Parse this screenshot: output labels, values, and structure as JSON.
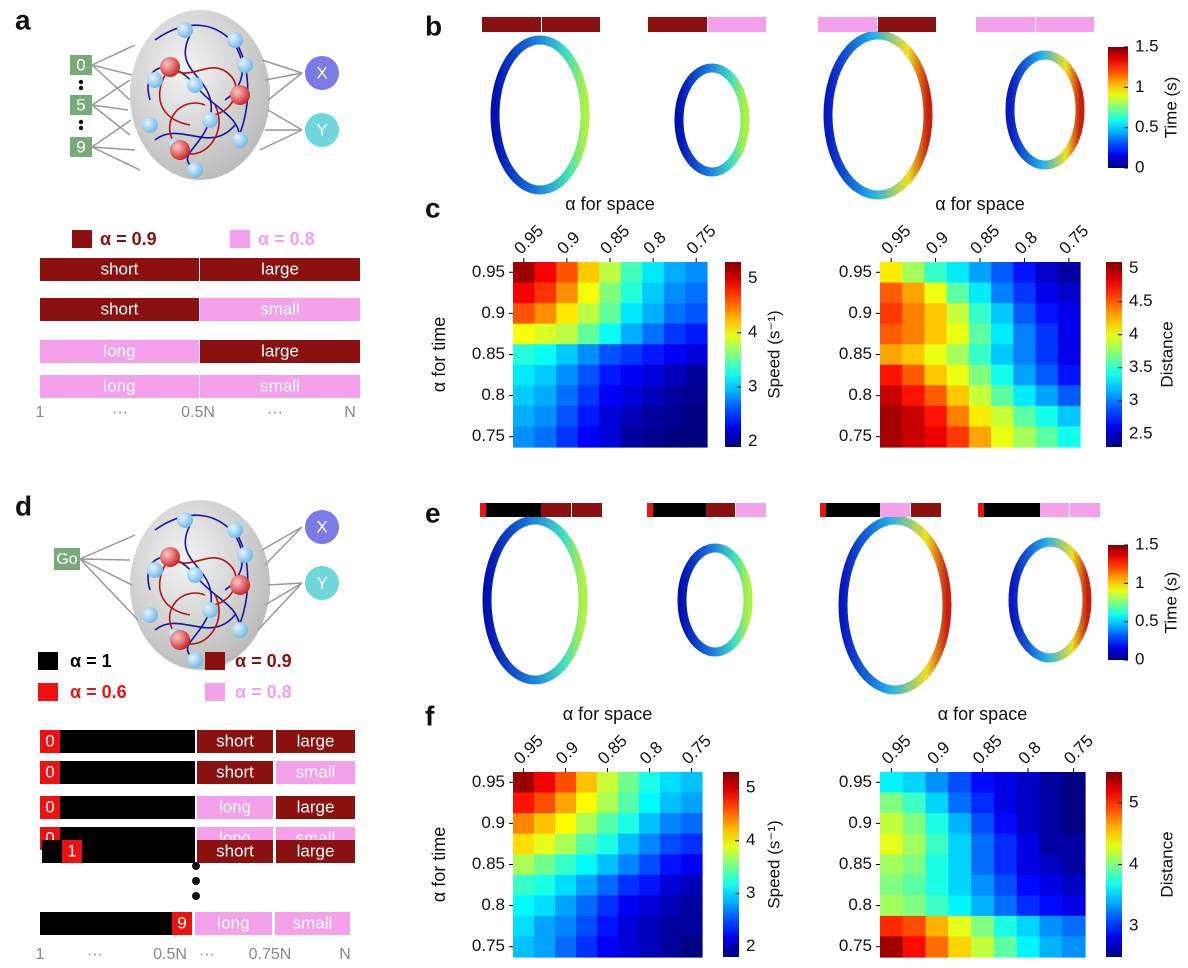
{
  "panel_letters": [
    "a",
    "b",
    "c",
    "d",
    "e",
    "f"
  ],
  "panel_a": {
    "inputs": [
      "0",
      "5",
      "9"
    ],
    "outputs": [
      "X",
      "Y"
    ],
    "legend": [
      {
        "label": "α = 0.9",
        "color": "#8b1010"
      },
      {
        "label": "α = 0.8",
        "color": "#f5a0ea"
      }
    ],
    "rows": [
      [
        "short",
        "large"
      ],
      [
        "short",
        "small"
      ],
      [
        "long",
        "large"
      ],
      [
        "long",
        "small"
      ]
    ],
    "axis": [
      "1",
      "···",
      "0.5N",
      "···",
      "N"
    ]
  },
  "panel_b": {
    "colorbar": {
      "label": "Time (s)",
      "lim": [
        0,
        1.5
      ],
      "ticks": [
        0,
        0.5,
        1,
        1.5
      ]
    }
  },
  "panel_d": {
    "input": "Go",
    "outputs": [
      "X",
      "Y"
    ],
    "legend": [
      {
        "label": "α = 1",
        "color": "#000000"
      },
      {
        "label": "α = 0.9",
        "color": "#8b1010"
      },
      {
        "label": "α = 0.6",
        "color": "#ee1111"
      },
      {
        "label": "α = 0.8",
        "color": "#f5a0ea"
      }
    ],
    "rows": [
      {
        "index": "0",
        "labels": [
          "short",
          "large"
        ]
      },
      {
        "index": "0",
        "labels": [
          "short",
          "small"
        ]
      },
      {
        "index": "0",
        "labels": [
          "long",
          "large"
        ]
      },
      {
        "index": "0",
        "labels": [
          "long",
          "small"
        ]
      },
      {
        "index": "1",
        "labels": [
          "short",
          "large"
        ]
      },
      {
        "index": "9",
        "labels": [
          "long",
          "small"
        ]
      }
    ],
    "axis": [
      "1",
      "···",
      "0.5N",
      "···",
      "0.75N",
      "N"
    ]
  },
  "panel_e": {
    "colorbar": {
      "label": "Time (s)",
      "lim": [
        0,
        1.5
      ],
      "ticks": [
        0,
        0.5,
        1,
        1.5
      ]
    }
  },
  "chart_data": [
    {
      "type": "heatmap",
      "title": "α for space",
      "y_label": "α for time",
      "colormap": "jet",
      "x": [
        0.95,
        0.925,
        0.9,
        0.875,
        0.85,
        0.825,
        0.8,
        0.775,
        0.75
      ],
      "y": [
        0.95,
        0.925,
        0.9,
        0.875,
        0.85,
        0.825,
        0.8,
        0.775,
        0.75
      ],
      "xlim": [
        0.9625,
        0.7375
      ],
      "ylim": [
        0.9625,
        0.7375
      ],
      "xticks": [
        0.95,
        0.9,
        0.85,
        0.8,
        0.75
      ],
      "yticks": [
        0.95,
        0.9,
        0.85,
        0.8,
        0.75
      ],
      "values": [
        [
          5.2,
          4.9,
          4.6,
          4.2,
          3.8,
          3.4,
          3.1,
          2.9,
          2.8
        ],
        [
          4.9,
          4.7,
          4.4,
          4.0,
          3.6,
          3.3,
          3.0,
          2.8,
          2.7
        ],
        [
          4.6,
          4.4,
          4.1,
          3.8,
          3.5,
          3.1,
          2.9,
          2.7,
          2.6
        ],
        [
          4.0,
          3.9,
          3.8,
          3.5,
          3.2,
          2.9,
          2.7,
          2.5,
          2.4
        ],
        [
          3.3,
          3.2,
          3.0,
          2.8,
          2.6,
          2.5,
          2.4,
          2.3,
          2.2
        ],
        [
          3.1,
          3.0,
          2.8,
          2.6,
          2.4,
          2.3,
          2.2,
          2.1,
          2.0
        ],
        [
          3.0,
          2.9,
          2.7,
          2.5,
          2.3,
          2.2,
          2.1,
          2.0,
          1.95
        ],
        [
          2.9,
          2.8,
          2.6,
          2.4,
          2.2,
          2.1,
          2.0,
          1.95,
          1.9
        ],
        [
          2.8,
          2.7,
          2.5,
          2.3,
          2.2,
          2.0,
          1.95,
          1.9,
          1.9
        ]
      ],
      "clim": [
        1.9,
        5.3
      ],
      "cticks": [
        2,
        3,
        4,
        5
      ],
      "colorbar_label": "Speed (s⁻¹)"
    },
    {
      "type": "heatmap",
      "title": "α for space",
      "colormap": "jet",
      "x": [
        0.95,
        0.925,
        0.9,
        0.875,
        0.85,
        0.825,
        0.8,
        0.775,
        0.75
      ],
      "y": [
        0.95,
        0.925,
        0.9,
        0.875,
        0.85,
        0.825,
        0.8,
        0.775,
        0.75
      ],
      "xlim": [
        0.9625,
        0.7375
      ],
      "ylim": [
        0.9625,
        0.7375
      ],
      "xticks": [
        0.95,
        0.9,
        0.85,
        0.8,
        0.75
      ],
      "yticks": [
        0.95,
        0.9,
        0.85,
        0.8,
        0.75
      ],
      "values": [
        [
          4.1,
          3.8,
          3.5,
          3.3,
          3.1,
          2.9,
          2.7,
          2.5,
          2.4
        ],
        [
          4.5,
          4.3,
          4.0,
          3.6,
          3.3,
          3.0,
          2.8,
          2.6,
          2.5
        ],
        [
          4.6,
          4.4,
          4.2,
          3.9,
          3.5,
          3.2,
          2.9,
          2.7,
          2.6
        ],
        [
          4.5,
          4.4,
          4.2,
          4.0,
          3.6,
          3.3,
          3.0,
          2.8,
          2.6
        ],
        [
          4.3,
          4.2,
          4.0,
          3.8,
          3.5,
          3.2,
          3.0,
          2.8,
          2.6
        ],
        [
          4.7,
          4.5,
          4.2,
          4.0,
          3.7,
          3.4,
          3.1,
          2.9,
          2.7
        ],
        [
          4.9,
          4.7,
          4.5,
          4.2,
          3.9,
          3.6,
          3.3,
          3.1,
          2.9
        ],
        [
          5.0,
          4.9,
          4.7,
          4.4,
          4.1,
          3.9,
          3.6,
          3.4,
          3.2
        ],
        [
          5.0,
          4.9,
          4.8,
          4.6,
          4.3,
          4.0,
          3.8,
          3.6,
          3.4
        ]
      ],
      "clim": [
        2.3,
        5.1
      ],
      "cticks": [
        2.5,
        3,
        3.5,
        4,
        4.5,
        5
      ],
      "colorbar_label": "Distance"
    },
    {
      "type": "heatmap",
      "title": "α for space",
      "y_label": "α for time",
      "colormap": "jet",
      "x": [
        0.95,
        0.925,
        0.9,
        0.875,
        0.85,
        0.825,
        0.8,
        0.775,
        0.75
      ],
      "y": [
        0.95,
        0.925,
        0.9,
        0.875,
        0.85,
        0.825,
        0.8,
        0.775,
        0.75
      ],
      "xlim": [
        0.9625,
        0.7375
      ],
      "ylim": [
        0.9625,
        0.7375
      ],
      "xticks": [
        0.95,
        0.9,
        0.85,
        0.8,
        0.75
      ],
      "yticks": [
        0.95,
        0.9,
        0.85,
        0.8,
        0.75
      ],
      "values": [
        [
          5.2,
          4.9,
          4.6,
          4.2,
          3.8,
          3.5,
          3.2,
          3.0,
          2.9
        ],
        [
          4.8,
          4.6,
          4.3,
          4.0,
          3.7,
          3.4,
          3.1,
          2.9,
          2.8
        ],
        [
          4.4,
          4.2,
          4.0,
          3.7,
          3.4,
          3.2,
          2.9,
          2.7,
          2.6
        ],
        [
          4.1,
          3.9,
          3.7,
          3.4,
          3.2,
          2.9,
          2.7,
          2.5,
          2.4
        ],
        [
          3.7,
          3.5,
          3.3,
          3.1,
          2.9,
          2.7,
          2.5,
          2.3,
          2.2
        ],
        [
          3.3,
          3.2,
          3.0,
          2.8,
          2.6,
          2.4,
          2.3,
          2.1,
          2.0
        ],
        [
          3.1,
          3.0,
          2.8,
          2.6,
          2.4,
          2.2,
          2.1,
          2.0,
          1.9
        ],
        [
          3.0,
          2.8,
          2.7,
          2.5,
          2.3,
          2.1,
          2.0,
          1.9,
          1.9
        ],
        [
          2.9,
          2.8,
          2.6,
          2.4,
          2.2,
          2.1,
          2.0,
          1.9,
          1.8
        ]
      ],
      "clim": [
        1.8,
        5.3
      ],
      "cticks": [
        2,
        3,
        4,
        5
      ],
      "colorbar_label": "Speed (s⁻¹)"
    },
    {
      "type": "heatmap",
      "title": "α for space",
      "colormap": "jet",
      "x": [
        0.95,
        0.925,
        0.9,
        0.875,
        0.85,
        0.825,
        0.8,
        0.775,
        0.75
      ],
      "y": [
        0.95,
        0.925,
        0.9,
        0.875,
        0.85,
        0.825,
        0.8,
        0.775,
        0.75
      ],
      "xlim": [
        0.9625,
        0.7375
      ],
      "ylim": [
        0.9625,
        0.7375
      ],
      "xticks": [
        0.95,
        0.9,
        0.85,
        0.8,
        0.75
      ],
      "yticks": [
        0.95,
        0.9,
        0.85,
        0.8,
        0.75
      ],
      "values": [
        [
          3.6,
          3.5,
          3.3,
          3.1,
          2.9,
          2.8,
          2.7,
          2.6,
          2.5
        ],
        [
          4.0,
          3.8,
          3.5,
          3.2,
          3.0,
          2.8,
          2.7,
          2.6,
          2.5
        ],
        [
          4.2,
          4.0,
          3.7,
          3.4,
          3.1,
          2.9,
          2.7,
          2.6,
          2.5
        ],
        [
          4.3,
          4.1,
          3.8,
          3.5,
          3.2,
          3.0,
          2.8,
          2.6,
          2.6
        ],
        [
          4.1,
          4.0,
          3.7,
          3.5,
          3.2,
          3.0,
          2.8,
          2.7,
          2.6
        ],
        [
          4.0,
          3.9,
          3.7,
          3.5,
          3.3,
          3.1,
          2.9,
          2.8,
          2.7
        ],
        [
          4.1,
          4.0,
          3.8,
          3.6,
          3.4,
          3.2,
          3.0,
          2.9,
          2.8
        ],
        [
          5.0,
          4.9,
          4.6,
          4.3,
          4.0,
          3.7,
          3.5,
          3.3,
          3.2
        ],
        [
          5.4,
          5.1,
          4.8,
          4.5,
          4.2,
          3.9,
          3.6,
          3.4,
          3.3
        ]
      ],
      "clim": [
        2.5,
        5.5
      ],
      "cticks": [
        3,
        4,
        5
      ],
      "colorbar_label": "Distance"
    }
  ]
}
